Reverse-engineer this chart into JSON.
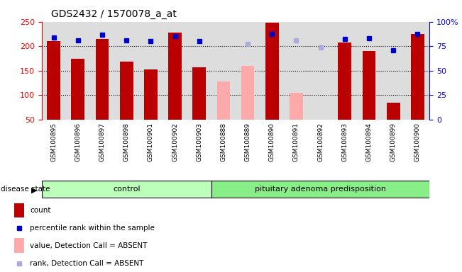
{
  "title": "GDS2432 / 1570078_a_at",
  "samples": [
    "GSM100895",
    "GSM100896",
    "GSM100897",
    "GSM100898",
    "GSM100901",
    "GSM100902",
    "GSM100903",
    "GSM100888",
    "GSM100889",
    "GSM100890",
    "GSM100891",
    "GSM100892",
    "GSM100893",
    "GSM100894",
    "GSM100899",
    "GSM100900"
  ],
  "groups": [
    "control",
    "control",
    "control",
    "control",
    "control",
    "control",
    "control",
    "pituitary adenoma predisposition",
    "pituitary adenoma predisposition",
    "pituitary adenoma predisposition",
    "pituitary adenoma predisposition",
    "pituitary adenoma predisposition",
    "pituitary adenoma predisposition",
    "pituitary adenoma predisposition",
    "pituitary adenoma predisposition",
    "pituitary adenoma predisposition"
  ],
  "count_values": [
    210,
    175,
    215,
    168,
    152,
    228,
    157,
    null,
    null,
    248,
    null,
    null,
    208,
    190,
    85,
    225
  ],
  "count_absent_values": [
    null,
    null,
    null,
    null,
    null,
    null,
    null,
    128,
    160,
    null,
    105,
    null,
    null,
    null,
    null,
    null
  ],
  "percentile_values": [
    218,
    212,
    223,
    212,
    210,
    220,
    210,
    null,
    null,
    225,
    null,
    null,
    215,
    217,
    192,
    225
  ],
  "percentile_absent_values": [
    null,
    null,
    null,
    null,
    null,
    null,
    null,
    null,
    205,
    null,
    212,
    198,
    null,
    null,
    null,
    null
  ],
  "ylim_left": [
    50,
    250
  ],
  "ylim_right": [
    0,
    100
  ],
  "yticks_left": [
    50,
    100,
    150,
    200,
    250
  ],
  "yticks_right": [
    0,
    25,
    50,
    75,
    100
  ],
  "ytick_labels_right": [
    "0",
    "25",
    "50",
    "75",
    "100%"
  ],
  "bar_color_present": "#bb0000",
  "bar_color_absent": "#ffaaaa",
  "dot_color_present": "#0000cc",
  "dot_color_absent": "#aaaadd",
  "control_color": "#bbffbb",
  "pituitary_color": "#88ee88",
  "plot_bg_color": "#dddddd",
  "xtick_bg_color": "#cccccc",
  "bar_width": 0.55,
  "n_control": 7,
  "n_pituitary": 9
}
